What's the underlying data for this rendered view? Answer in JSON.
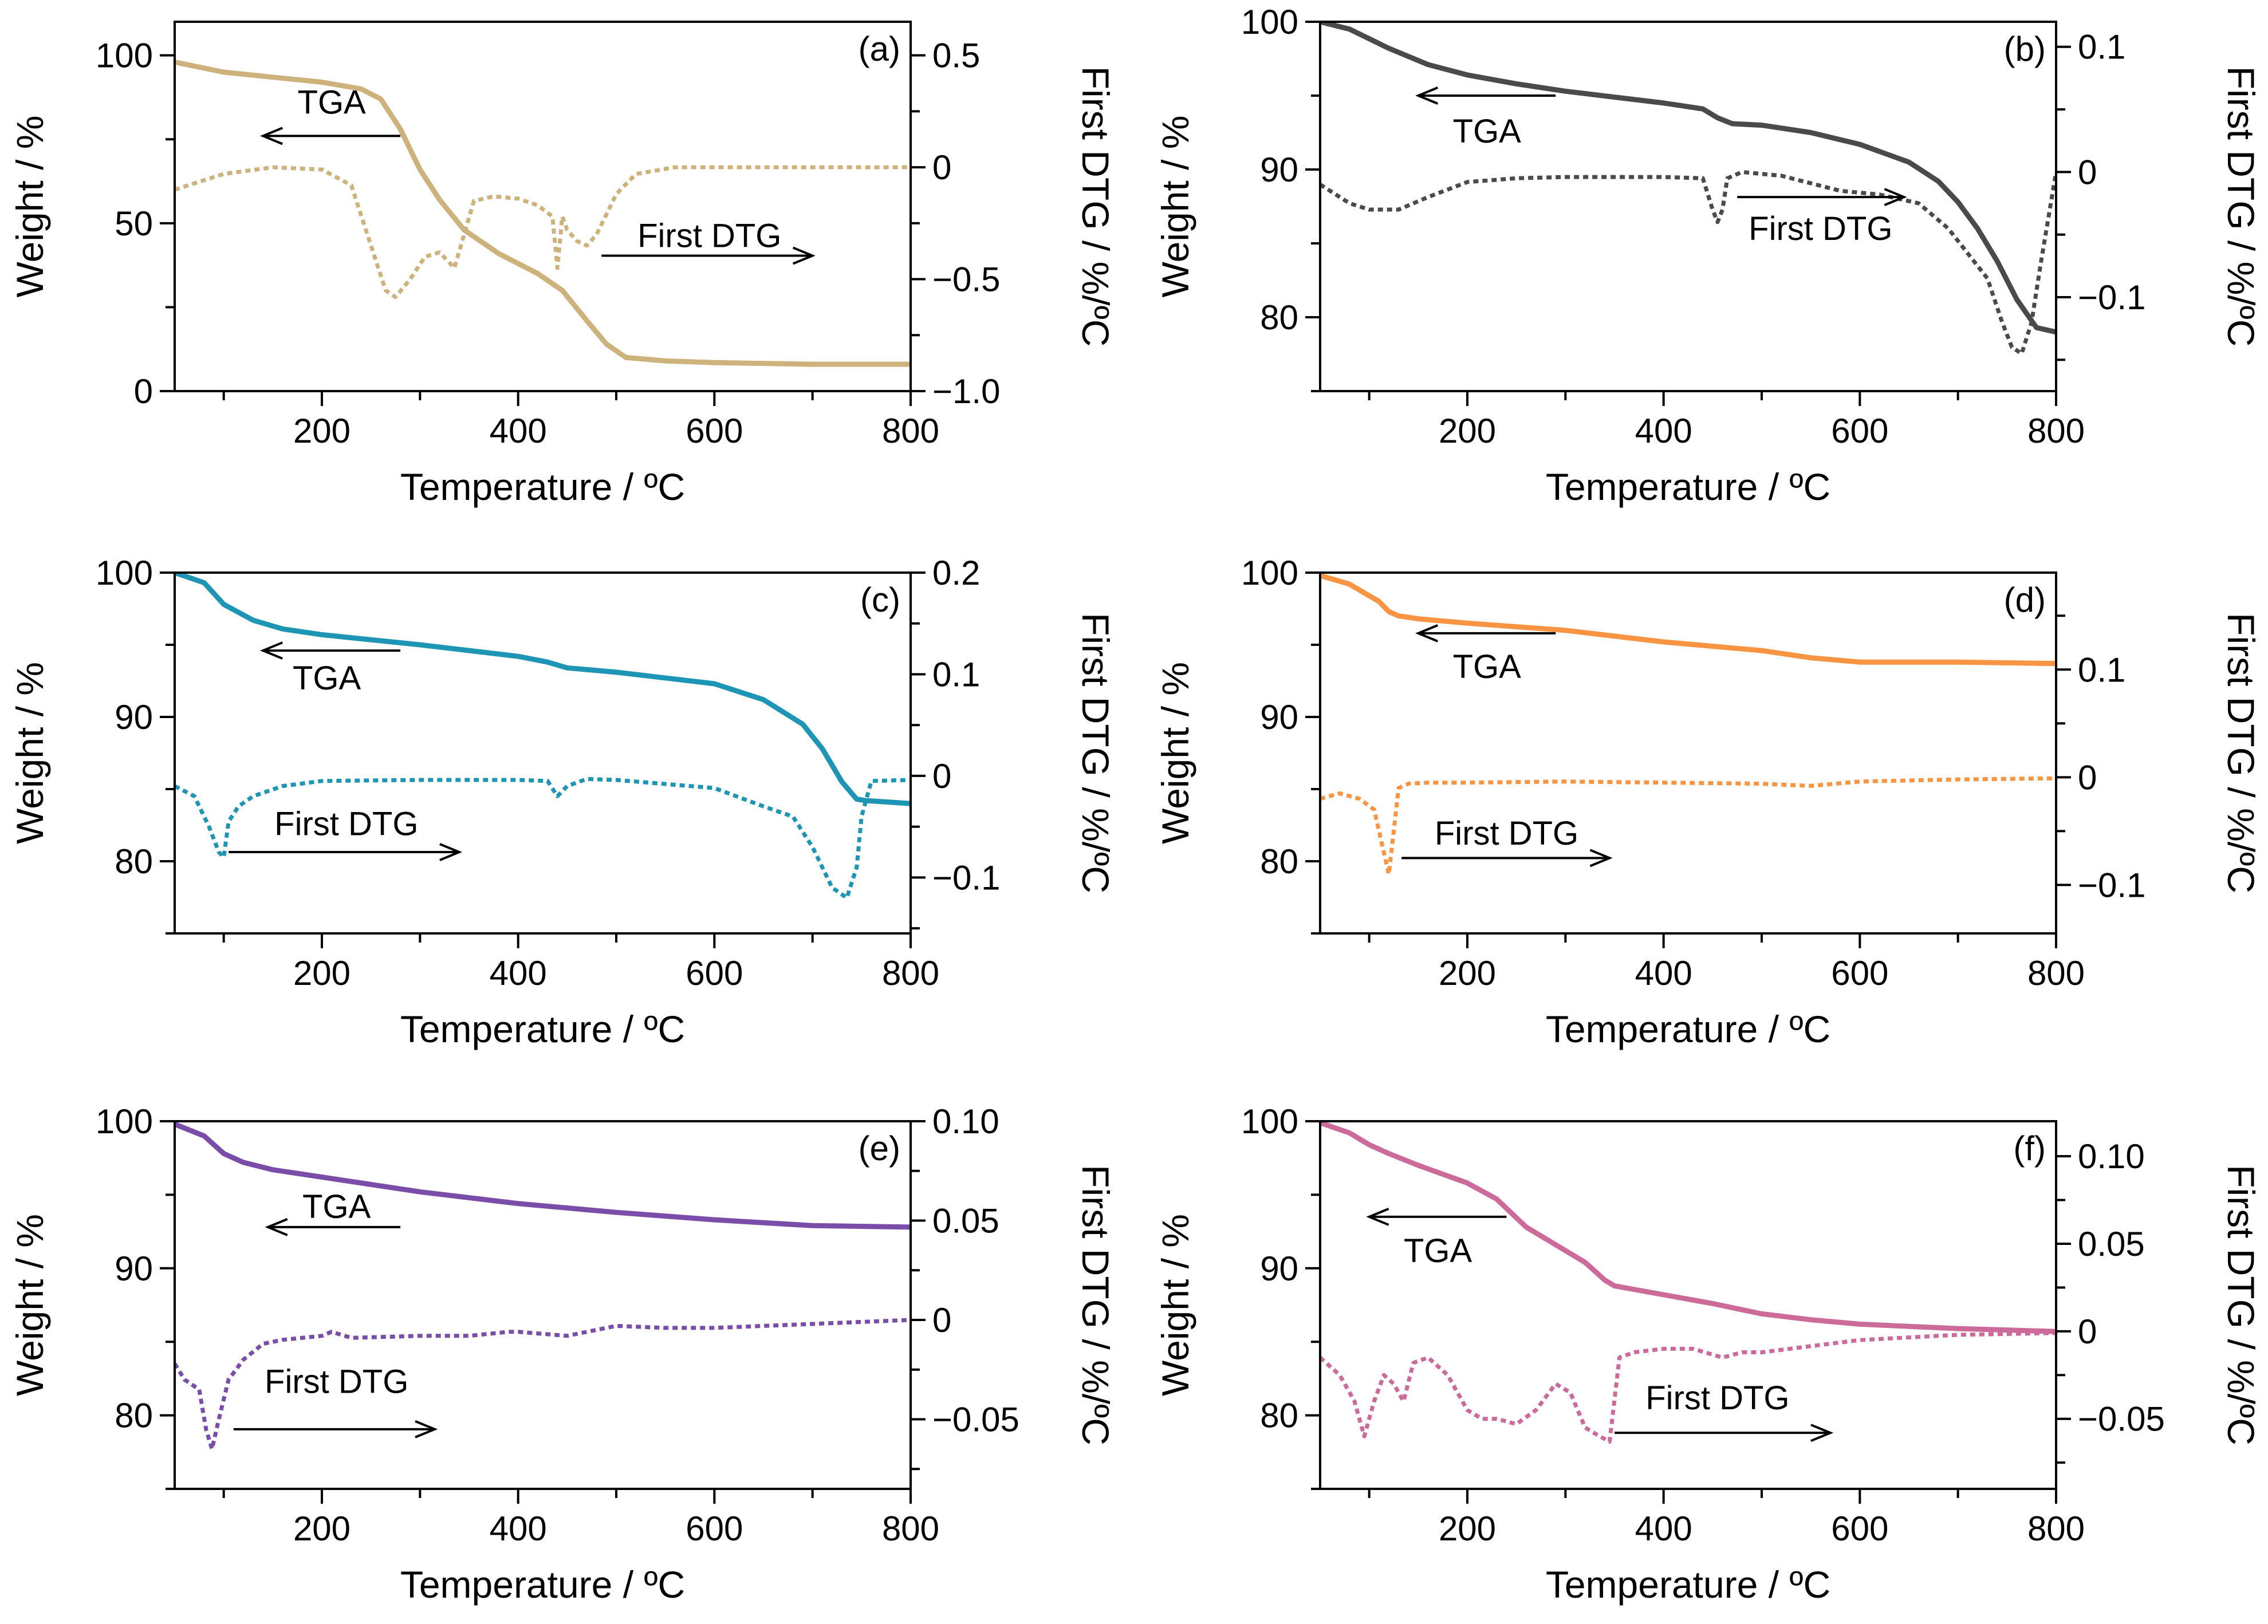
{
  "figure": {
    "x_title": "Temperature / ºC",
    "y_title": "Weight / %",
    "y2_title": "First DTG / %/ºC"
  },
  "chart_data": [
    {
      "type": "line",
      "panel": "(a)",
      "color": "#cdb27c",
      "xlabel": "Temperature / ºC",
      "ylabel": "Weight / %",
      "y2label": "First DTG / %/ºC",
      "xlim": [
        50,
        800
      ],
      "ylim": [
        0,
        110
      ],
      "y2lim": [
        -1.0,
        0.65
      ],
      "xticks": [
        200,
        400,
        600,
        800
      ],
      "yticks": [
        0,
        50,
        100
      ],
      "y2ticks": [
        -1.0,
        -0.5,
        0,
        0.5
      ],
      "xtick_labels": [
        "200",
        "400",
        "600",
        "800"
      ],
      "ytick_labels": [
        "0",
        "50",
        "100"
      ],
      "y2tick_labels": [
        "−1.0",
        "−0.5",
        "0",
        "0.5"
      ],
      "series": [
        {
          "name": "TGA",
          "axis": "left",
          "style": "solid",
          "x": [
            50,
            100,
            150,
            200,
            240,
            260,
            280,
            300,
            320,
            345,
            380,
            420,
            445,
            470,
            490,
            510,
            550,
            600,
            700,
            800
          ],
          "y": [
            98,
            95,
            93.5,
            92,
            90,
            87,
            78,
            66,
            57,
            48,
            41,
            35,
            30,
            21,
            14,
            10,
            9,
            8.5,
            8,
            8
          ]
        },
        {
          "name": "First DTG",
          "axis": "right",
          "style": "dotted",
          "x": [
            50,
            100,
            150,
            200,
            230,
            250,
            265,
            275,
            290,
            305,
            320,
            335,
            345,
            355,
            375,
            400,
            420,
            435,
            440,
            445,
            450,
            460,
            470,
            480,
            500,
            520,
            560,
            600,
            700,
            800
          ],
          "y": [
            -0.1,
            -0.03,
            0,
            -0.01,
            -0.08,
            -0.35,
            -0.55,
            -0.58,
            -0.5,
            -0.4,
            -0.38,
            -0.45,
            -0.3,
            -0.15,
            -0.13,
            -0.14,
            -0.17,
            -0.22,
            -0.45,
            -0.22,
            -0.28,
            -0.33,
            -0.35,
            -0.3,
            -0.12,
            -0.03,
            0,
            0,
            0,
            0
          ]
        }
      ],
      "annotations": [
        {
          "text": "TGA",
          "direction": "left"
        },
        {
          "text": "First DTG",
          "direction": "right"
        }
      ]
    },
    {
      "type": "line",
      "panel": "(b)",
      "color": "#4a4a4a",
      "xlabel": "Temperature / ºC",
      "ylabel": "Weight / %",
      "y2label": "First DTG / %/ºC",
      "xlim": [
        50,
        800
      ],
      "ylim": [
        75,
        100
      ],
      "y2lim": [
        -0.175,
        0.12
      ],
      "xticks": [
        200,
        400,
        600,
        800
      ],
      "yticks": [
        80,
        90,
        100
      ],
      "y2ticks": [
        -0.1,
        0,
        0.1
      ],
      "xtick_labels": [
        "200",
        "400",
        "600",
        "800"
      ],
      "ytick_labels": [
        "80",
        "90",
        "100"
      ],
      "y2tick_labels": [
        "−0.1",
        "0",
        "0.1"
      ],
      "series": [
        {
          "name": "TGA",
          "axis": "left",
          "style": "solid",
          "x": [
            50,
            80,
            120,
            160,
            200,
            250,
            300,
            350,
            400,
            440,
            455,
            470,
            500,
            550,
            600,
            650,
            680,
            700,
            720,
            740,
            760,
            780,
            800
          ],
          "y": [
            100,
            99.5,
            98.2,
            97.1,
            96.4,
            95.8,
            95.3,
            94.9,
            94.5,
            94.1,
            93.5,
            93.1,
            93,
            92.5,
            91.7,
            90.5,
            89.2,
            87.8,
            86,
            83.8,
            81.2,
            79.3,
            79
          ]
        },
        {
          "name": "First DTG",
          "axis": "right",
          "style": "dotted",
          "x": [
            50,
            80,
            100,
            130,
            160,
            200,
            250,
            300,
            350,
            400,
            440,
            450,
            455,
            460,
            465,
            480,
            520,
            580,
            620,
            660,
            690,
            710,
            730,
            745,
            755,
            765,
            775,
            785,
            800
          ],
          "y": [
            -0.01,
            -0.025,
            -0.03,
            -0.03,
            -0.02,
            -0.008,
            -0.005,
            -0.004,
            -0.004,
            -0.004,
            -0.005,
            -0.03,
            -0.04,
            -0.03,
            -0.005,
            0,
            -0.003,
            -0.015,
            -0.018,
            -0.025,
            -0.045,
            -0.065,
            -0.085,
            -0.12,
            -0.14,
            -0.145,
            -0.12,
            -0.07,
            0
          ]
        }
      ],
      "annotations": [
        {
          "text": "TGA",
          "direction": "left"
        },
        {
          "text": "First DTG",
          "direction": "right"
        }
      ]
    },
    {
      "type": "line",
      "panel": "(c)",
      "color": "#1f95b5",
      "xlabel": "Temperature / ºC",
      "ylabel": "Weight / %",
      "y2label": "First DTG / %/ºC",
      "xlim": [
        50,
        800
      ],
      "ylim": [
        75,
        100
      ],
      "y2lim": [
        -0.155,
        0.2
      ],
      "xticks": [
        200,
        400,
        600,
        800
      ],
      "yticks": [
        80,
        90,
        100
      ],
      "y2ticks": [
        -0.1,
        0,
        0.1,
        0.2
      ],
      "xtick_labels": [
        "200",
        "400",
        "600",
        "800"
      ],
      "ytick_labels": [
        "80",
        "90",
        "100"
      ],
      "y2tick_labels": [
        "−0.1",
        "0",
        "0.1",
        "0.2"
      ],
      "series": [
        {
          "name": "TGA",
          "axis": "left",
          "style": "solid",
          "x": [
            50,
            80,
            100,
            130,
            160,
            200,
            300,
            400,
            430,
            450,
            500,
            600,
            650,
            690,
            710,
            730,
            745,
            755,
            800
          ],
          "y": [
            100,
            99.3,
            97.8,
            96.7,
            96.1,
            95.7,
            95,
            94.2,
            93.8,
            93.4,
            93.1,
            92.3,
            91.2,
            89.5,
            87.8,
            85.5,
            84.3,
            84.2,
            84
          ]
        },
        {
          "name": "First DTG",
          "axis": "right",
          "style": "dotted",
          "x": [
            50,
            70,
            85,
            95,
            100,
            105,
            115,
            130,
            160,
            200,
            300,
            400,
            430,
            440,
            450,
            470,
            500,
            600,
            650,
            680,
            700,
            720,
            735,
            745,
            750,
            760,
            800
          ],
          "y": [
            -0.01,
            -0.02,
            -0.05,
            -0.075,
            -0.08,
            -0.045,
            -0.03,
            -0.02,
            -0.01,
            -0.005,
            -0.004,
            -0.004,
            -0.005,
            -0.02,
            -0.01,
            -0.003,
            -0.004,
            -0.012,
            -0.03,
            -0.04,
            -0.07,
            -0.11,
            -0.12,
            -0.09,
            -0.04,
            -0.005,
            -0.004
          ]
        }
      ],
      "annotations": [
        {
          "text": "TGA",
          "direction": "left"
        },
        {
          "text": "First DTG",
          "direction": "right"
        }
      ]
    },
    {
      "type": "line",
      "panel": "(d)",
      "color": "#f99443",
      "xlabel": "Temperature / ºC",
      "ylabel": "Weight / %",
      "y2label": "First DTG / %/ºC",
      "xlim": [
        50,
        800
      ],
      "ylim": [
        75,
        100
      ],
      "y2lim": [
        -0.145,
        0.19
      ],
      "xticks": [
        200,
        400,
        600,
        800
      ],
      "yticks": [
        80,
        90,
        100
      ],
      "y2ticks": [
        -0.1,
        0,
        0.1
      ],
      "xtick_labels": [
        "200",
        "400",
        "600",
        "800"
      ],
      "ytick_labels": [
        "80",
        "90",
        "100"
      ],
      "y2tick_labels": [
        "−0.1",
        "0",
        "0.1"
      ],
      "series": [
        {
          "name": "TGA",
          "axis": "left",
          "style": "solid",
          "x": [
            50,
            80,
            110,
            120,
            130,
            150,
            200,
            300,
            400,
            500,
            550,
            600,
            700,
            800
          ],
          "y": [
            99.8,
            99.2,
            98,
            97.3,
            97,
            96.8,
            96.5,
            96,
            95.2,
            94.6,
            94.1,
            93.8,
            93.8,
            93.7
          ]
        },
        {
          "name": "First DTG",
          "axis": "right",
          "style": "dotted",
          "x": [
            50,
            70,
            90,
            105,
            115,
            120,
            125,
            130,
            140,
            160,
            200,
            300,
            400,
            500,
            550,
            600,
            700,
            800
          ],
          "y": [
            -0.02,
            -0.015,
            -0.02,
            -0.03,
            -0.07,
            -0.09,
            -0.05,
            -0.01,
            -0.006,
            -0.005,
            -0.005,
            -0.004,
            -0.005,
            -0.006,
            -0.008,
            -0.004,
            -0.002,
            -0.001
          ]
        }
      ],
      "annotations": [
        {
          "text": "TGA",
          "direction": "left"
        },
        {
          "text": "First DTG",
          "direction": "right"
        }
      ]
    },
    {
      "type": "line",
      "panel": "(e)",
      "color": "#7a4ea8",
      "xlabel": "Temperature / ºC",
      "ylabel": "Weight / %",
      "y2label": "First DTG / %/ºC",
      "xlim": [
        50,
        800
      ],
      "ylim": [
        75,
        100
      ],
      "y2lim": [
        -0.085,
        0.1
      ],
      "xticks": [
        200,
        400,
        600,
        800
      ],
      "yticks": [
        80,
        90,
        100
      ],
      "y2ticks": [
        -0.05,
        0,
        0.05,
        0.1
      ],
      "xtick_labels": [
        "200",
        "400",
        "600",
        "800"
      ],
      "ytick_labels": [
        "80",
        "90",
        "100"
      ],
      "y2tick_labels": [
        "−0.05",
        "0",
        "0.05",
        "0.10"
      ],
      "series": [
        {
          "name": "TGA",
          "axis": "left",
          "style": "solid",
          "x": [
            50,
            80,
            100,
            120,
            150,
            200,
            300,
            400,
            500,
            600,
            700,
            800
          ],
          "y": [
            99.8,
            99,
            97.8,
            97.2,
            96.7,
            96.2,
            95.2,
            94.4,
            93.8,
            93.3,
            92.9,
            92.8
          ]
        },
        {
          "name": "First DTG",
          "axis": "right",
          "style": "dotted",
          "x": [
            50,
            60,
            75,
            82,
            88,
            95,
            105,
            120,
            140,
            160,
            200,
            210,
            230,
            300,
            350,
            390,
            400,
            450,
            500,
            550,
            600,
            700,
            800
          ],
          "y": [
            -0.022,
            -0.03,
            -0.035,
            -0.055,
            -0.065,
            -0.05,
            -0.03,
            -0.02,
            -0.012,
            -0.01,
            -0.008,
            -0.006,
            -0.009,
            -0.008,
            -0.008,
            -0.006,
            -0.006,
            -0.008,
            -0.003,
            -0.004,
            -0.004,
            -0.002,
            0
          ]
        }
      ],
      "annotations": [
        {
          "text": "TGA",
          "direction": "left"
        },
        {
          "text": "First DTG",
          "direction": "right"
        }
      ]
    },
    {
      "type": "line",
      "panel": "(f)",
      "color": "#cc6b99",
      "xlabel": "Temperature / ºC",
      "ylabel": "Weight / %",
      "y2label": "First DTG / %/ºC",
      "xlim": [
        50,
        800
      ],
      "ylim": [
        75,
        100
      ],
      "y2lim": [
        -0.09,
        0.12
      ],
      "xticks": [
        200,
        400,
        600,
        800
      ],
      "yticks": [
        80,
        90,
        100
      ],
      "y2ticks": [
        -0.05,
        0,
        0.05,
        0.1
      ],
      "xtick_labels": [
        "200",
        "400",
        "600",
        "800"
      ],
      "ytick_labels": [
        "80",
        "90",
        "100"
      ],
      "y2tick_labels": [
        "−0.05",
        "0",
        "0.05",
        "0.10"
      ],
      "series": [
        {
          "name": "TGA",
          "axis": "left",
          "style": "solid",
          "x": [
            50,
            80,
            100,
            120,
            150,
            200,
            230,
            260,
            290,
            320,
            340,
            350,
            400,
            450,
            500,
            550,
            600,
            700,
            800
          ],
          "y": [
            99.9,
            99.2,
            98.4,
            97.8,
            97,
            95.8,
            94.7,
            92.8,
            91.6,
            90.4,
            89.2,
            88.8,
            88.2,
            87.6,
            86.9,
            86.5,
            86.2,
            85.9,
            85.7
          ]
        },
        {
          "name": "First DTG",
          "axis": "right",
          "style": "dotted",
          "x": [
            50,
            70,
            85,
            95,
            105,
            115,
            125,
            135,
            145,
            160,
            180,
            200,
            215,
            230,
            250,
            270,
            290,
            305,
            320,
            335,
            345,
            355,
            370,
            400,
            430,
            460,
            480,
            500,
            600,
            700,
            800
          ],
          "y": [
            -0.015,
            -0.025,
            -0.04,
            -0.06,
            -0.04,
            -0.025,
            -0.03,
            -0.04,
            -0.018,
            -0.015,
            -0.025,
            -0.045,
            -0.05,
            -0.05,
            -0.053,
            -0.045,
            -0.03,
            -0.035,
            -0.055,
            -0.06,
            -0.063,
            -0.015,
            -0.012,
            -0.01,
            -0.01,
            -0.015,
            -0.012,
            -0.012,
            -0.005,
            -0.002,
            -0.001
          ]
        }
      ],
      "annotations": [
        {
          "text": "TGA",
          "direction": "left"
        },
        {
          "text": "First DTG",
          "direction": "right"
        }
      ]
    }
  ]
}
